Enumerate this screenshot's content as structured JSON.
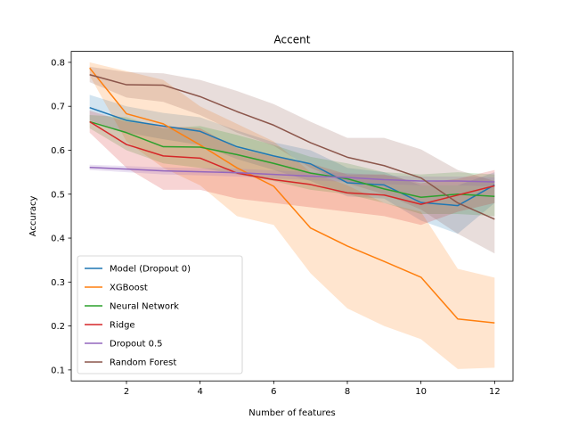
{
  "chart_data": {
    "type": "line",
    "title": "Accent",
    "xlabel": "Number of features",
    "ylabel": "Accuracy",
    "xlim": [
      0.5,
      12.5
    ],
    "ylim": [
      0.075,
      0.825
    ],
    "xticks": [
      2,
      4,
      6,
      8,
      10,
      12
    ],
    "yticks": [
      0.1,
      0.2,
      0.3,
      0.4,
      0.5,
      0.6,
      0.7,
      0.8
    ],
    "grid": false,
    "legend_position": "lower-left",
    "x": [
      1,
      2,
      3,
      4,
      5,
      6,
      7,
      8,
      9,
      10,
      11,
      12
    ],
    "series": [
      {
        "name": "Model (Dropout 0)",
        "color": "#1f77b4",
        "values": [
          0.697,
          0.668,
          0.655,
          0.643,
          0.608,
          0.587,
          0.569,
          0.526,
          0.521,
          0.481,
          0.474,
          0.521
        ],
        "lower": [
          0.668,
          0.64,
          0.625,
          0.612,
          0.58,
          0.555,
          0.53,
          0.495,
          0.49,
          0.44,
          0.41,
          0.48
        ],
        "upper": [
          0.726,
          0.7,
          0.685,
          0.675,
          0.645,
          0.618,
          0.6,
          0.56,
          0.55,
          0.52,
          0.52,
          0.55
        ]
      },
      {
        "name": "XGBoost",
        "color": "#ff7f0e",
        "values": [
          0.787,
          0.683,
          0.66,
          0.612,
          0.56,
          0.518,
          0.423,
          0.382,
          0.347,
          0.311,
          0.216,
          0.207
        ],
        "lower": [
          0.77,
          0.62,
          0.56,
          0.52,
          0.45,
          0.43,
          0.32,
          0.24,
          0.2,
          0.17,
          0.102,
          0.105
        ],
        "upper": [
          0.8,
          0.78,
          0.76,
          0.7,
          0.66,
          0.62,
          0.55,
          0.52,
          0.48,
          0.46,
          0.33,
          0.31
        ]
      },
      {
        "name": "Neural Network",
        "color": "#2ca02c",
        "values": [
          0.665,
          0.64,
          0.608,
          0.607,
          0.59,
          0.57,
          0.548,
          0.535,
          0.512,
          0.493,
          0.5,
          0.495
        ],
        "lower": [
          0.65,
          0.6,
          0.57,
          0.56,
          0.545,
          0.53,
          0.51,
          0.5,
          0.48,
          0.455,
          0.455,
          0.45
        ],
        "upper": [
          0.68,
          0.675,
          0.65,
          0.655,
          0.635,
          0.612,
          0.585,
          0.57,
          0.55,
          0.545,
          0.55,
          0.545
        ]
      },
      {
        "name": "Ridge",
        "color": "#d62728",
        "values": [
          0.665,
          0.613,
          0.587,
          0.582,
          0.548,
          0.533,
          0.522,
          0.503,
          0.498,
          0.477,
          0.498,
          0.519
        ],
        "lower": [
          0.64,
          0.56,
          0.51,
          0.51,
          0.49,
          0.48,
          0.47,
          0.46,
          0.45,
          0.43,
          0.46,
          0.48
        ],
        "upper": [
          0.69,
          0.665,
          0.655,
          0.65,
          0.605,
          0.585,
          0.57,
          0.545,
          0.545,
          0.525,
          0.535,
          0.555
        ]
      },
      {
        "name": "Dropout 0.5",
        "color": "#9467bd",
        "values": [
          0.561,
          0.557,
          0.553,
          0.551,
          0.549,
          0.545,
          0.541,
          0.538,
          0.533,
          0.53,
          0.53,
          0.528
        ],
        "lower": [
          0.555,
          0.55,
          0.545,
          0.543,
          0.54,
          0.536,
          0.532,
          0.528,
          0.523,
          0.52,
          0.52,
          0.518
        ],
        "upper": [
          0.567,
          0.564,
          0.561,
          0.559,
          0.558,
          0.554,
          0.55,
          0.548,
          0.543,
          0.54,
          0.54,
          0.538
        ]
      },
      {
        "name": "Random Forest",
        "color": "#8c564b",
        "values": [
          0.772,
          0.749,
          0.748,
          0.722,
          0.688,
          0.657,
          0.617,
          0.584,
          0.565,
          0.537,
          0.48,
          0.443
        ],
        "lower": [
          0.755,
          0.72,
          0.71,
          0.68,
          0.64,
          0.61,
          0.56,
          0.525,
          0.5,
          0.465,
          0.41,
          0.365
        ],
        "upper": [
          0.79,
          0.778,
          0.775,
          0.76,
          0.735,
          0.705,
          0.665,
          0.628,
          0.628,
          0.602,
          0.555,
          0.53
        ]
      }
    ]
  }
}
